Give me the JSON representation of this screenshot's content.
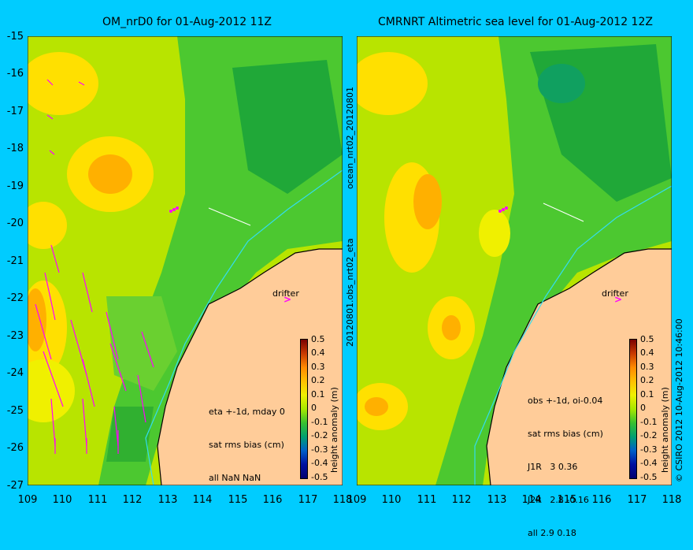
{
  "left_panel": {
    "title": "OM_nrD0 for 01-Aug-2012 11Z",
    "info_lines": [
      "eta +-1d, mday 0",
      "sat rms bias (cm)",
      "all NaN NaN"
    ],
    "side_label_top": "ocean_nrt02_20120801",
    "side_label_bottom": "20120801.obs_nrt02_eta",
    "drifter_label": "drifter"
  },
  "right_panel": {
    "title": "CMRNRT Altimetric sea level  for 01-Aug-2012 12Z",
    "info_lines": [
      "obs +-1d, oi-0.04",
      "sat rms bias (cm)",
      "J1R   3 0.36",
      "J2R   2.8 -0.16",
      "all 2.9 0.18"
    ],
    "side_label": "© CSIRO 2012  10-Aug-2012 10:46:00",
    "drifter_label": "drifter"
  },
  "y_ticks": [
    "-15",
    "-16",
    "-17",
    "-18",
    "-19",
    "-20",
    "-21",
    "-22",
    "-23",
    "-24",
    "-25",
    "-26",
    "-27"
  ],
  "x_ticks": [
    "109",
    "110",
    "111",
    "112",
    "113",
    "114",
    "115",
    "116",
    "117",
    "118"
  ],
  "colorbar": {
    "label": "height anomaly (m)",
    "ticks": [
      "0.5",
      "0.4",
      "0.3",
      "0.2",
      "0.1",
      "0",
      "-0.1",
      "-0.2",
      "-0.3",
      "-0.4",
      "-0.5"
    ]
  },
  "colors": {
    "background": "#00ccff",
    "land": "#ffcc99",
    "vectors": "#ff00ff"
  }
}
